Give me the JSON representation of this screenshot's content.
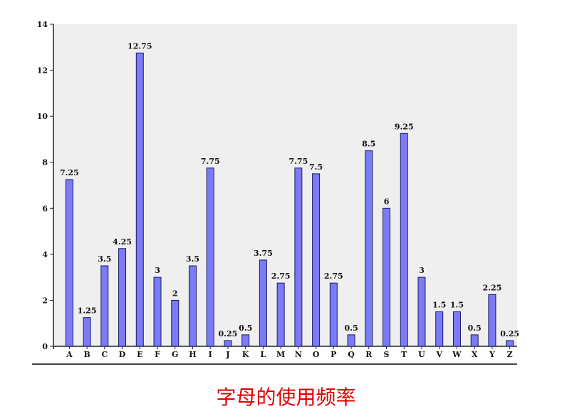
{
  "caption": "字母的使用频率",
  "colors": {
    "plot_background": "#efeff0",
    "bar_fill": "#7b7bf5",
    "bar_stroke": "#1a1a66",
    "axis": "#222222",
    "caption": "#e00000"
  },
  "chart_data": {
    "type": "bar",
    "title": "",
    "xlabel": "",
    "ylabel": "",
    "categories": [
      "A",
      "B",
      "C",
      "D",
      "E",
      "F",
      "G",
      "H",
      "I",
      "J",
      "K",
      "L",
      "M",
      "N",
      "O",
      "P",
      "Q",
      "R",
      "S",
      "T",
      "U",
      "V",
      "W",
      "X",
      "Y",
      "Z"
    ],
    "values": [
      7.25,
      1.25,
      3.5,
      4.25,
      12.75,
      3,
      2,
      3.5,
      7.75,
      0.25,
      0.5,
      3.75,
      2.75,
      7.75,
      7.5,
      2.75,
      0.5,
      8.5,
      6,
      9.25,
      3,
      1.5,
      1.5,
      0.5,
      2.25,
      0.25
    ],
    "data_labels": [
      "7.25",
      "1.25",
      "3.5",
      "4.25",
      "12.75",
      "3",
      "2",
      "3.5",
      "7.75",
      "0.25",
      "0.5",
      "3.75",
      "2.75",
      "7.75",
      "7.5",
      "2.75",
      "0.5",
      "8.5",
      "6",
      "9.25",
      "3",
      "1.5",
      "1.5",
      "0.5",
      "2.25",
      "0.25"
    ],
    "ylim": [
      0,
      14
    ],
    "yticks": [
      "0",
      "2",
      "4",
      "6",
      "8",
      "10",
      "12",
      "14"
    ],
    "grid": false,
    "legend": "none"
  }
}
